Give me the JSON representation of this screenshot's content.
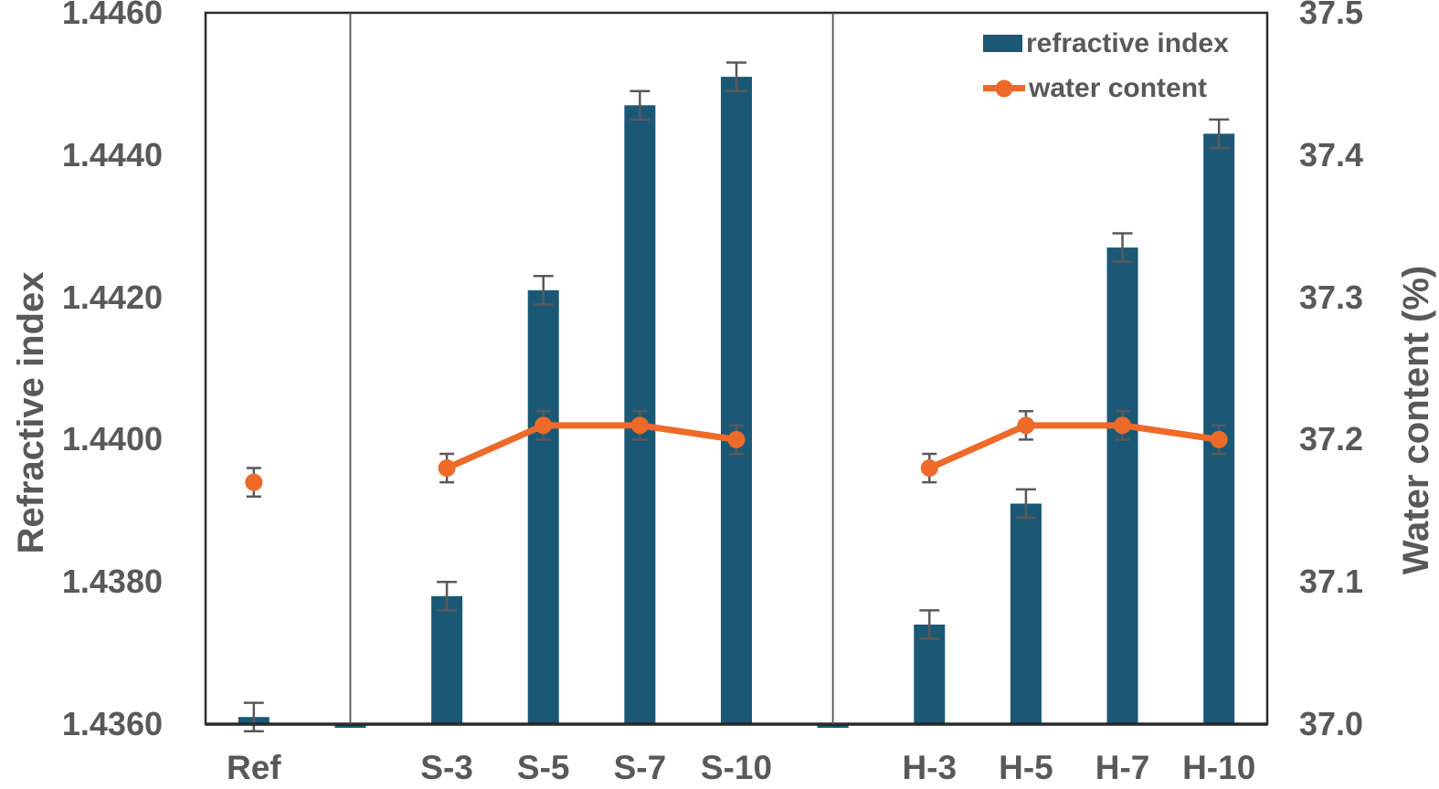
{
  "chart_data": {
    "type": "combo_bar_line",
    "title": "",
    "categories": [
      "Ref",
      "S-3",
      "S-5",
      "S-7",
      "S-10",
      "H-3",
      "H-5",
      "H-7",
      "H-10"
    ],
    "panel_groups": [
      [
        "Ref"
      ],
      [
        "S-3",
        "S-5",
        "S-7",
        "S-10"
      ],
      [
        "H-3",
        "H-5",
        "H-7",
        "H-10"
      ]
    ],
    "series": [
      {
        "name": "refractive index",
        "type": "bar",
        "axis": "left",
        "color": "#1A5876",
        "values": [
          1.4361,
          1.4378,
          1.4421,
          1.4447,
          1.4451,
          1.4374,
          1.4391,
          1.4427,
          1.4443
        ],
        "errors": [
          0.0002,
          0.0002,
          0.0002,
          0.0002,
          0.0002,
          0.0002,
          0.0002,
          0.0002,
          0.0002
        ]
      },
      {
        "name": "water content",
        "type": "line",
        "axis": "right",
        "color": "#ED6A28",
        "marker": "circle",
        "line_connects_within_panels_only": true,
        "values": [
          37.17,
          37.18,
          37.21,
          37.21,
          37.2,
          37.18,
          37.21,
          37.21,
          37.2
        ],
        "errors": [
          0.01,
          0.01,
          0.01,
          0.01,
          0.01,
          0.01,
          0.01,
          0.01,
          0.01
        ]
      }
    ],
    "axes": {
      "left": {
        "label": "Refractive index",
        "min": 1.436,
        "max": 1.446,
        "tick_labels": [
          "1.4460",
          "1.4440",
          "1.4420",
          "1.4400",
          "1.4380",
          "1.4360"
        ]
      },
      "right": {
        "label": "Water content (%)",
        "min": 37.0,
        "max": 37.5,
        "tick_labels": [
          "37.5",
          "37.4",
          "37.3",
          "37.2",
          "37.1",
          "37.0"
        ]
      }
    },
    "grid": false,
    "legend_position": "top-right-inside",
    "legend": [
      {
        "label": "refractive index",
        "marker": "bar-swatch"
      },
      {
        "label": "water content",
        "marker": "line-dot"
      }
    ],
    "panel_dividers": true,
    "spacer_bars_at_axis_min": true,
    "error_bar_color": "#595959",
    "frame_color": "#2b2b2b"
  }
}
